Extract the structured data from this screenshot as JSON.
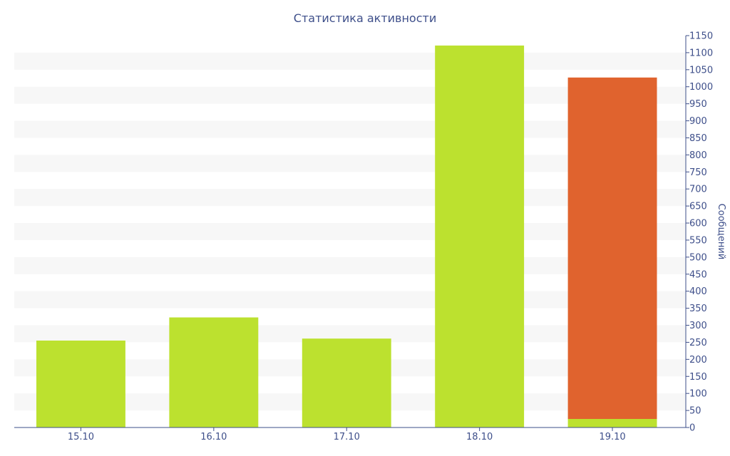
{
  "chart_data": {
    "type": "bar",
    "title": "Статистика активности",
    "xlabel": "",
    "ylabel": "Сообщений",
    "categories": [
      "15.10",
      "16.10",
      "17.10",
      "18.10",
      "19.10"
    ],
    "series": [
      {
        "values": [
          255,
          323,
          261,
          1121,
          25
        ],
        "color": "#bce12f"
      },
      {
        "values": [
          0,
          0,
          0,
          0,
          1002
        ],
        "color": "#e0632e"
      }
    ],
    "stacked": true,
    "ylim": [
      0,
      1150
    ],
    "ytick_step": 50,
    "yaxis_position": "right",
    "grid": true,
    "grid_style": "alternating-bands",
    "colors": {
      "axis": "#3e4f8a",
      "band": "#f7f7f7"
    }
  }
}
